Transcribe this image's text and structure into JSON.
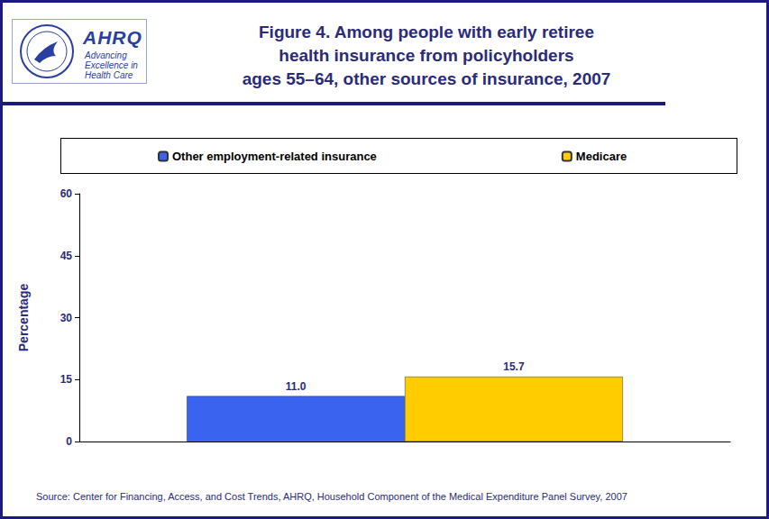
{
  "chart_data": {
    "type": "bar",
    "title": "Figure 4. Among people with early retiree\nhealth insurance from policyholders\nages 55–64, other sources of insurance, 2007",
    "logo": "AHRQ",
    "logo_tagline": "Advancing Excellence in Health Care",
    "source": "Source: Center for Financing, Access, and Cost Trends, AHRQ, Household Component of the Medical Expenditure Panel Survey, 2007",
    "y_label": "Percentage",
    "categories": [
      null
    ],
    "series": [
      {
        "name": "Other employment-related insurance",
        "color": "#3a63f0",
        "values": [
          11.0
        ],
        "value_labels": [
          "11.0"
        ]
      },
      {
        "name": "Medicare",
        "color": "#ffcc00",
        "values": [
          15.7
        ],
        "value_labels": [
          "15.7"
        ]
      }
    ],
    "ylim": [
      0,
      60
    ],
    "yticks": [
      0,
      15,
      30,
      45,
      60
    ],
    "grid": false,
    "legend": "top",
    "data_labels": true
  }
}
